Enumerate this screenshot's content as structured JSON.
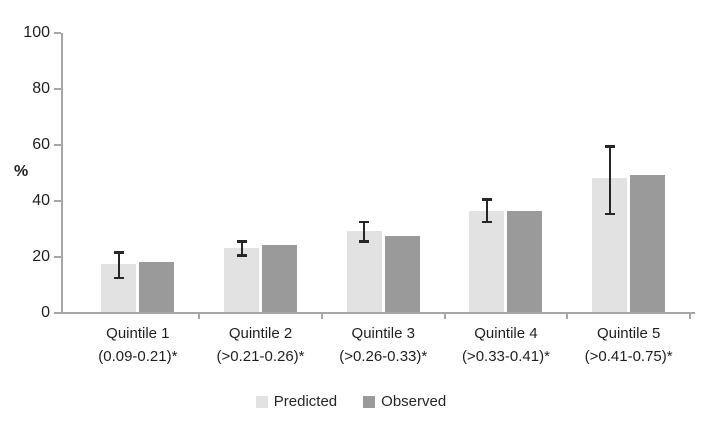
{
  "chart_data": {
    "type": "bar",
    "title": "",
    "ylabel": "%",
    "xlabel": "",
    "ylim": [
      0,
      100
    ],
    "yticks": [
      0,
      20,
      40,
      60,
      80,
      100
    ],
    "grid": false,
    "legend_position": "bottom",
    "categories": [
      "Quintile 1",
      "Quintile 2",
      "Quintile 3",
      "Quintile 4",
      "Quintile 5"
    ],
    "category_sublabels": [
      "(0.09-0.21)*",
      "(>0.21-0.26)*",
      "(>0.26-0.33)*",
      "(>0.33-0.41)*",
      "(>0.41-0.75)*"
    ],
    "series": [
      {
        "name": "Predicted",
        "color": "#e2e2e2",
        "values": [
          17,
          23,
          29,
          36,
          48
        ],
        "error_bars": {
          "low": [
            12,
            20,
            25,
            32,
            35
          ],
          "high": [
            22,
            26,
            33,
            41,
            60
          ]
        }
      },
      {
        "name": "Observed",
        "color": "#9a9a9a",
        "values": [
          18,
          24,
          27,
          36,
          49
        ]
      }
    ]
  },
  "colors": {
    "axis": "#a6a6a6",
    "error_bar": "#262626",
    "text": "#1f1f1f"
  }
}
